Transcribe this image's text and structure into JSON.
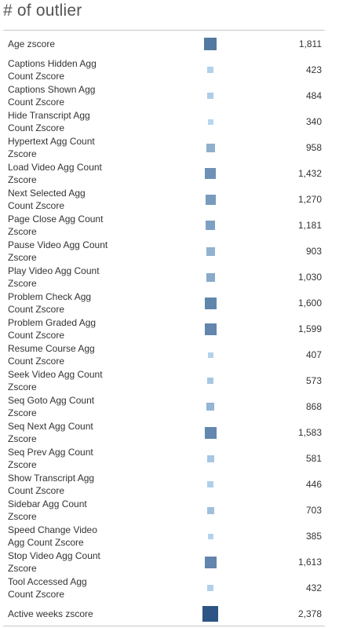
{
  "chart_data": {
    "type": "table",
    "title": "# of outlier",
    "categories": [
      "Age zscore",
      "Captions Hidden Agg Count Zscore",
      "Captions Shown Agg Count Zscore",
      "Hide Transcript Agg Count Zscore",
      "Hypertext Agg Count Zscore",
      "Load Video Agg Count Zscore",
      "Next Selected Agg Count Zscore",
      "Page Close Agg Count Zscore",
      "Pause Video Agg Count Zscore",
      "Play Video Agg Count Zscore",
      "Problem Check Agg Count Zscore",
      "Problem Graded Agg Count Zscore",
      "Resume Course Agg Count Zscore",
      "Seek Video Agg Count Zscore",
      "Seq Goto Agg Count Zscore",
      "Seq Next Agg Count Zscore",
      "Seq Prev Agg Count Zscore",
      "Show Transcript Agg Count Zscore",
      "Sidebar Agg Count Zscore",
      "Speed Change Video Agg Count Zscore",
      "Stop Video Agg Count Zscore",
      "Tool Accessed Agg Count Zscore",
      "Active weeks zscore"
    ],
    "values": [
      1811,
      423,
      484,
      340,
      958,
      1432,
      1270,
      1181,
      903,
      1030,
      1600,
      1599,
      407,
      573,
      868,
      1583,
      581,
      446,
      703,
      385,
      1613,
      432,
      2378
    ],
    "value_labels": [
      "1,811",
      "423",
      "484",
      "340",
      "958",
      "1,432",
      "1,270",
      "1,181",
      "903",
      "1,030",
      "1,600",
      "1,599",
      "407",
      "573",
      "868",
      "1,583",
      "581",
      "446",
      "703",
      "385",
      "1,613",
      "432",
      "2,378"
    ],
    "color_range": [
      "#b8d6ee",
      "#2c5585"
    ],
    "encoding": "square marks sized and colored by value"
  }
}
